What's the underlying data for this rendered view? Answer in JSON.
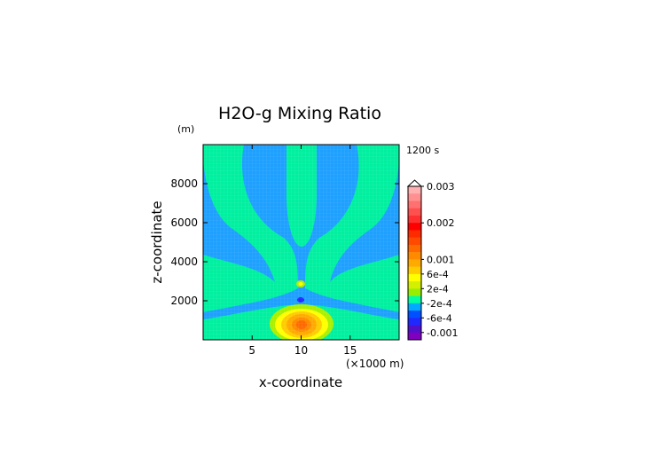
{
  "chart_data": {
    "type": "heatmap",
    "title": "H2O-g Mixing Ratio",
    "time_label": "1200 s",
    "xlabel": "x-coordinate",
    "x_unit_label": "(×1000 m)",
    "ylabel": "z-coordinate",
    "y_unit_label": "(m)",
    "xlim": [
      0,
      20
    ],
    "ylim": [
      0,
      10000
    ],
    "x_ticks": [
      5,
      10,
      15
    ],
    "x_tick_labels": [
      "5",
      "10",
      "15"
    ],
    "y_ticks": [
      2000,
      4000,
      6000,
      8000
    ],
    "y_tick_labels": [
      "2000",
      "4000",
      "6000",
      "8000"
    ],
    "grid": false,
    "colorbar": {
      "max_label": "0.003",
      "tick_labels": [
        "0.003",
        "0.002",
        "0.001",
        "6e-4",
        "2e-4",
        "-2e-4",
        "-6e-4",
        "-0.001"
      ],
      "levels_top_to_bottom": [
        0.003,
        0.0028,
        0.0026,
        0.0024,
        0.0022,
        0.002,
        0.0018,
        0.0016,
        0.0014,
        0.0012,
        0.001,
        0.0008,
        0.0006,
        0.0004,
        0.0002,
        0.0,
        -0.0002,
        -0.0004,
        -0.0006,
        -0.0008,
        -0.001
      ],
      "colors_top_to_bottom": [
        "#ffb0b0",
        "#ff9090",
        "#ff7070",
        "#ff5050",
        "#ff3030",
        "#ff0000",
        "#ff2a00",
        "#ff4a00",
        "#ff6a00",
        "#ff8a00",
        "#ffaa00",
        "#ffcc00",
        "#ffff00",
        "#d4f000",
        "#99ee00",
        "#00ffa0",
        "#00aaff",
        "#0050ff",
        "#1e28ff",
        "#5010cc",
        "#8000c0"
      ]
    },
    "field_description_values": {
      "background": -0.0001,
      "plume_bands": 0.0001,
      "core_center": 0.0012
    },
    "colors": {
      "band_negative": "#1ea0ff",
      "band_positive": "#00f0a0",
      "band_yellow": "#ffff00",
      "band_orange": "#ffaa00",
      "band_red_orange": "#ff6a00",
      "band_lime": "#aaf000"
    }
  }
}
